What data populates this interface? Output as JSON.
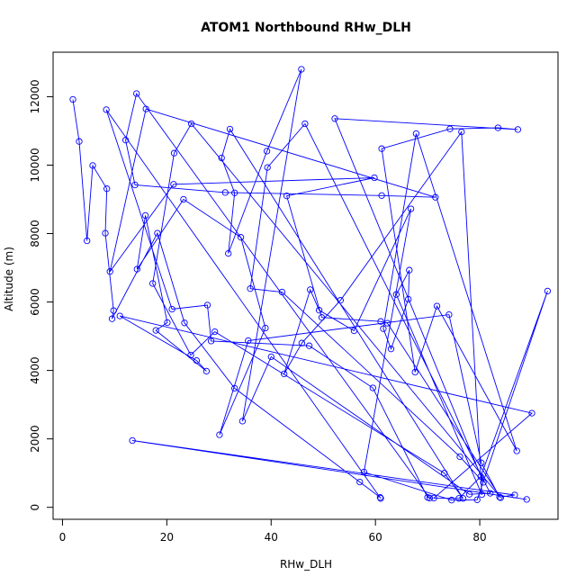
{
  "chart_data": {
    "type": "line",
    "title": "ATOM1 Northbound RHw_DLH",
    "xlabel": "RHw_DLH",
    "ylabel": "Altitude (m)",
    "xlim": [
      -1.8,
      95.0
    ],
    "ylim": [
      -350,
      13300
    ],
    "x_ticks": [
      0,
      20,
      40,
      60,
      80
    ],
    "x_tick_labels": [
      "0",
      "20",
      "40",
      "60",
      "80"
    ],
    "y_ticks": [
      0,
      2000,
      4000,
      6000,
      8000,
      10000,
      12000
    ],
    "y_tick_labels": [
      "0",
      "2000",
      "4000",
      "6000",
      "8000",
      "10000",
      "12000"
    ],
    "grid": false,
    "legend": "none",
    "marker": "open-circle",
    "colors": {
      "series": "#0000ff",
      "axes": "#000000",
      "background": "#ffffff"
    },
    "series": [
      {
        "points": [
          [
            2.0,
            11920
          ],
          [
            3.2,
            10690
          ],
          [
            4.7,
            7790
          ],
          [
            5.8,
            9990
          ],
          [
            8.5,
            9310
          ],
          [
            8.2,
            8010
          ],
          [
            9.8,
            5750
          ],
          [
            9.5,
            5510
          ],
          [
            18.2,
            8010
          ],
          [
            23.4,
            5390
          ],
          [
            33.0,
            3480
          ],
          [
            57.0,
            740
          ],
          [
            60.9,
            290
          ],
          [
            61.0,
            260
          ],
          [
            8.4,
            11620
          ],
          [
            21.0,
            5790
          ],
          [
            27.8,
            5910
          ],
          [
            28.5,
            4860
          ],
          [
            47.3,
            4720
          ],
          [
            59.5,
            3490
          ],
          [
            70.0,
            290
          ],
          [
            70.4,
            270
          ],
          [
            14.2,
            12090
          ],
          [
            12.1,
            10730
          ],
          [
            13.9,
            9420
          ],
          [
            31.2,
            9200
          ],
          [
            61.2,
            9110
          ],
          [
            71.5,
            9060
          ],
          [
            16.0,
            11640
          ],
          [
            9.1,
            6890
          ],
          [
            21.3,
            9440
          ],
          [
            59.8,
            9630
          ],
          [
            43.0,
            9100
          ],
          [
            49.7,
            5550
          ],
          [
            61.0,
            5430
          ],
          [
            62.3,
            5380
          ],
          [
            84.0,
            280
          ],
          [
            24.7,
            11210
          ],
          [
            21.4,
            10350
          ],
          [
            17.3,
            6540
          ],
          [
            24.6,
            4450
          ],
          [
            29.2,
            5130
          ],
          [
            73.2,
            1000
          ],
          [
            76.8,
            260
          ],
          [
            32.1,
            11050
          ],
          [
            30.5,
            10210
          ],
          [
            33.0,
            9190
          ],
          [
            31.8,
            7420
          ],
          [
            39.2,
            10410
          ],
          [
            45.8,
            12800
          ],
          [
            34.5,
            2520
          ],
          [
            40.0,
            4400
          ],
          [
            78.0,
            380
          ],
          [
            82.0,
            410
          ],
          [
            46.5,
            11210
          ],
          [
            39.3,
            9930
          ],
          [
            36.0,
            6390
          ],
          [
            42.1,
            6290
          ],
          [
            76.2,
            1480
          ],
          [
            80.7,
            730
          ],
          [
            52.2,
            11360
          ],
          [
            87.3,
            11040
          ],
          [
            83.5,
            11090
          ],
          [
            74.3,
            11060
          ],
          [
            61.2,
            10480
          ],
          [
            67.6,
            3950
          ],
          [
            71.8,
            5880
          ],
          [
            87.1,
            1650
          ],
          [
            67.8,
            10920
          ],
          [
            61.5,
            5220
          ],
          [
            63.0,
            4630
          ],
          [
            66.3,
            6080
          ],
          [
            66.5,
            6930
          ],
          [
            64.0,
            6220
          ],
          [
            80.4,
            370
          ],
          [
            76.5,
            10970
          ],
          [
            53.3,
            6050
          ],
          [
            45.9,
            4800
          ],
          [
            42.5,
            3900
          ],
          [
            47.5,
            6360
          ],
          [
            49.2,
            5760
          ],
          [
            55.9,
            5160
          ],
          [
            66.8,
            8720
          ],
          [
            57.8,
            1030
          ],
          [
            74.6,
            210
          ],
          [
            79.5,
            220
          ],
          [
            93.0,
            6320
          ],
          [
            80.2,
            900
          ],
          [
            76.0,
            260
          ],
          [
            71.2,
            270
          ],
          [
            90.0,
            2750
          ],
          [
            11.0,
            5590
          ],
          [
            25.7,
            4290
          ],
          [
            27.6,
            3980
          ],
          [
            17.9,
            5170
          ],
          [
            20.1,
            5400
          ],
          [
            15.9,
            8530
          ],
          [
            14.3,
            6960
          ],
          [
            23.2,
            9000
          ],
          [
            34.2,
            7890
          ],
          [
            38.9,
            5240
          ],
          [
            30.1,
            2120
          ],
          [
            35.6,
            4870
          ],
          [
            74.1,
            5630
          ],
          [
            80.3,
            1300
          ],
          [
            83.8,
            300
          ],
          [
            86.7,
            360
          ],
          [
            13.4,
            1950
          ],
          [
            89.0,
            230
          ]
        ]
      }
    ]
  }
}
